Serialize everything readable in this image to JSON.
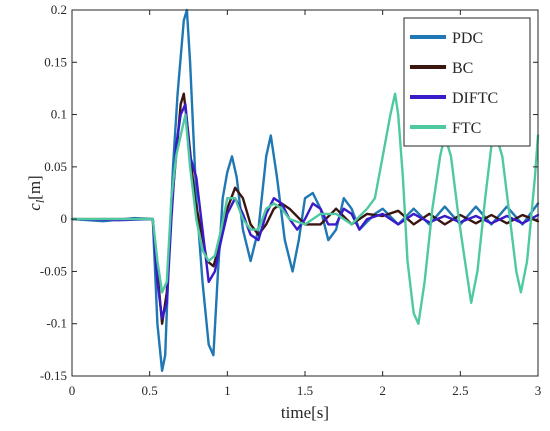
{
  "chart_data": {
    "type": "line",
    "title": "",
    "xlabel": "time[s]",
    "ylabel_main": "c",
    "ylabel_sub": "l",
    "ylabel_unit": "[m]",
    "xlim": [
      0,
      3
    ],
    "ylim": [
      -0.15,
      0.2
    ],
    "xticks": [
      0,
      0.5,
      1,
      1.5,
      2,
      2.5,
      3
    ],
    "xtick_labels": [
      "0",
      "0.5",
      "1",
      "1.5",
      "2",
      "2.5",
      "3"
    ],
    "yticks": [
      -0.15,
      -0.1,
      -0.05,
      0,
      0.05,
      0.1,
      0.15,
      0.2
    ],
    "ytick_labels": [
      "-0.15",
      "-0.1",
      "-0.05",
      "0",
      "0.05",
      "0.1",
      "0.15",
      "0.2"
    ],
    "grid": false,
    "legend_position": "top-right",
    "series": [
      {
        "name": "PDC",
        "color": "#1f77b4",
        "points": [
          [
            0,
            0
          ],
          [
            0.2,
            -0.002
          ],
          [
            0.4,
            0.001
          ],
          [
            0.52,
            0
          ],
          [
            0.55,
            -0.1
          ],
          [
            0.58,
            -0.145
          ],
          [
            0.6,
            -0.13
          ],
          [
            0.62,
            -0.05
          ],
          [
            0.65,
            0.05
          ],
          [
            0.68,
            0.12
          ],
          [
            0.72,
            0.19
          ],
          [
            0.74,
            0.2
          ],
          [
            0.76,
            0.15
          ],
          [
            0.8,
            0.02
          ],
          [
            0.84,
            -0.06
          ],
          [
            0.88,
            -0.12
          ],
          [
            0.91,
            -0.13
          ],
          [
            0.94,
            -0.05
          ],
          [
            0.97,
            0.02
          ],
          [
            1.0,
            0.045
          ],
          [
            1.03,
            0.06
          ],
          [
            1.06,
            0.04
          ],
          [
            1.1,
            -0.01
          ],
          [
            1.15,
            -0.04
          ],
          [
            1.2,
            -0.01
          ],
          [
            1.25,
            0.06
          ],
          [
            1.28,
            0.08
          ],
          [
            1.32,
            0.04
          ],
          [
            1.37,
            -0.02
          ],
          [
            1.42,
            -0.05
          ],
          [
            1.46,
            -0.02
          ],
          [
            1.5,
            0.02
          ],
          [
            1.55,
            0.025
          ],
          [
            1.6,
            0.01
          ],
          [
            1.65,
            -0.02
          ],
          [
            1.7,
            -0.01
          ],
          [
            1.75,
            0.02
          ],
          [
            1.8,
            0.01
          ],
          [
            1.85,
            -0.01
          ],
          [
            1.95,
            0.005
          ],
          [
            2.0,
            0.01
          ],
          [
            2.1,
            -0.005
          ],
          [
            2.2,
            0.01
          ],
          [
            2.3,
            -0.005
          ],
          [
            2.4,
            0.012
          ],
          [
            2.5,
            -0.005
          ],
          [
            2.6,
            0.012
          ],
          [
            2.7,
            -0.005
          ],
          [
            2.8,
            0.012
          ],
          [
            2.9,
            -0.005
          ],
          [
            3.0,
            0.015
          ]
        ]
      },
      {
        "name": "BC",
        "color": "#3b1510",
        "points": [
          [
            0,
            0
          ],
          [
            0.3,
            0
          ],
          [
            0.52,
            0
          ],
          [
            0.55,
            -0.05
          ],
          [
            0.58,
            -0.1
          ],
          [
            0.61,
            -0.07
          ],
          [
            0.64,
            0.01
          ],
          [
            0.67,
            0.06
          ],
          [
            0.7,
            0.11
          ],
          [
            0.72,
            0.12
          ],
          [
            0.75,
            0.08
          ],
          [
            0.79,
            0.02
          ],
          [
            0.83,
            -0.01
          ],
          [
            0.87,
            -0.04
          ],
          [
            0.91,
            -0.045
          ],
          [
            0.96,
            -0.02
          ],
          [
            1.0,
            0.01
          ],
          [
            1.05,
            0.03
          ],
          [
            1.1,
            0.02
          ],
          [
            1.15,
            -0.005
          ],
          [
            1.2,
            -0.015
          ],
          [
            1.25,
            -0.005
          ],
          [
            1.3,
            0.01
          ],
          [
            1.35,
            0.015
          ],
          [
            1.4,
            0.01
          ],
          [
            1.5,
            -0.005
          ],
          [
            1.6,
            -0.005
          ],
          [
            1.7,
            0.01
          ],
          [
            1.8,
            -0.005
          ],
          [
            1.9,
            0.005
          ],
          [
            2.0,
            0.003
          ],
          [
            2.1,
            0.008
          ],
          [
            2.2,
            -0.005
          ],
          [
            2.3,
            0.005
          ],
          [
            2.4,
            -0.005
          ],
          [
            2.5,
            0.004
          ],
          [
            2.6,
            -0.004
          ],
          [
            2.7,
            0.004
          ],
          [
            2.8,
            -0.004
          ],
          [
            2.9,
            0.004
          ],
          [
            3.0,
            -0.002
          ]
        ]
      },
      {
        "name": "DIFTC",
        "color": "#3a1bc9",
        "points": [
          [
            0,
            0
          ],
          [
            0.3,
            -0.001
          ],
          [
            0.52,
            0
          ],
          [
            0.55,
            -0.06
          ],
          [
            0.58,
            -0.095
          ],
          [
            0.61,
            -0.08
          ],
          [
            0.64,
            0.0
          ],
          [
            0.67,
            0.07
          ],
          [
            0.7,
            0.1
          ],
          [
            0.73,
            0.11
          ],
          [
            0.76,
            0.06
          ],
          [
            0.8,
            0.04
          ],
          [
            0.84,
            -0.01
          ],
          [
            0.88,
            -0.06
          ],
          [
            0.92,
            -0.05
          ],
          [
            0.96,
            -0.02
          ],
          [
            1.0,
            0.005
          ],
          [
            1.05,
            0.02
          ],
          [
            1.1,
            0.005
          ],
          [
            1.15,
            -0.015
          ],
          [
            1.2,
            -0.02
          ],
          [
            1.25,
            0.005
          ],
          [
            1.3,
            0.02
          ],
          [
            1.35,
            0.015
          ],
          [
            1.4,
            0.0
          ],
          [
            1.45,
            -0.01
          ],
          [
            1.5,
            0.0
          ],
          [
            1.55,
            0.015
          ],
          [
            1.6,
            0.01
          ],
          [
            1.65,
            -0.005
          ],
          [
            1.7,
            -0.005
          ],
          [
            1.75,
            0.01
          ],
          [
            1.8,
            0.005
          ],
          [
            1.85,
            -0.01
          ],
          [
            1.9,
            0.0
          ],
          [
            2.0,
            0.005
          ],
          [
            2.1,
            -0.005
          ],
          [
            2.2,
            0.005
          ],
          [
            2.3,
            -0.003
          ],
          [
            2.4,
            0.003
          ],
          [
            2.5,
            -0.003
          ],
          [
            2.6,
            0.003
          ],
          [
            2.7,
            -0.004
          ],
          [
            2.8,
            0.003
          ],
          [
            2.9,
            -0.004
          ],
          [
            3.0,
            0.004
          ]
        ]
      },
      {
        "name": "FTC",
        "color": "#4ec9a0",
        "points": [
          [
            0,
            0
          ],
          [
            0.3,
            0
          ],
          [
            0.52,
            0
          ],
          [
            0.55,
            -0.04
          ],
          [
            0.58,
            -0.07
          ],
          [
            0.61,
            -0.06
          ],
          [
            0.64,
            0.02
          ],
          [
            0.67,
            0.06
          ],
          [
            0.7,
            0.08
          ],
          [
            0.73,
            0.1
          ],
          [
            0.76,
            0.05
          ],
          [
            0.8,
            0.0
          ],
          [
            0.84,
            -0.03
          ],
          [
            0.88,
            -0.04
          ],
          [
            0.92,
            -0.035
          ],
          [
            0.96,
            -0.01
          ],
          [
            1.0,
            0.02
          ],
          [
            1.05,
            0.02
          ],
          [
            1.1,
            0.0
          ],
          [
            1.15,
            -0.01
          ],
          [
            1.2,
            -0.01
          ],
          [
            1.25,
            0.01
          ],
          [
            1.3,
            0.015
          ],
          [
            1.35,
            0.01
          ],
          [
            1.4,
            0.0
          ],
          [
            1.5,
            -0.005
          ],
          [
            1.6,
            0.005
          ],
          [
            1.7,
            0.005
          ],
          [
            1.8,
            -0.005
          ],
          [
            1.9,
            0.01
          ],
          [
            1.95,
            0.02
          ],
          [
            2.0,
            0.06
          ],
          [
            2.05,
            0.1
          ],
          [
            2.08,
            0.12
          ],
          [
            2.1,
            0.1
          ],
          [
            2.13,
            0.04
          ],
          [
            2.16,
            -0.04
          ],
          [
            2.2,
            -0.09
          ],
          [
            2.23,
            -0.1
          ],
          [
            2.27,
            -0.06
          ],
          [
            2.32,
            0.01
          ],
          [
            2.37,
            0.06
          ],
          [
            2.4,
            0.08
          ],
          [
            2.44,
            0.06
          ],
          [
            2.49,
            0.0
          ],
          [
            2.54,
            -0.05
          ],
          [
            2.57,
            -0.08
          ],
          [
            2.61,
            -0.05
          ],
          [
            2.66,
            0.02
          ],
          [
            2.7,
            0.07
          ],
          [
            2.73,
            0.08
          ],
          [
            2.77,
            0.06
          ],
          [
            2.82,
            0.0
          ],
          [
            2.86,
            -0.05
          ],
          [
            2.89,
            -0.07
          ],
          [
            2.93,
            -0.04
          ],
          [
            2.98,
            0.04
          ],
          [
            3.0,
            0.08
          ]
        ]
      }
    ]
  }
}
